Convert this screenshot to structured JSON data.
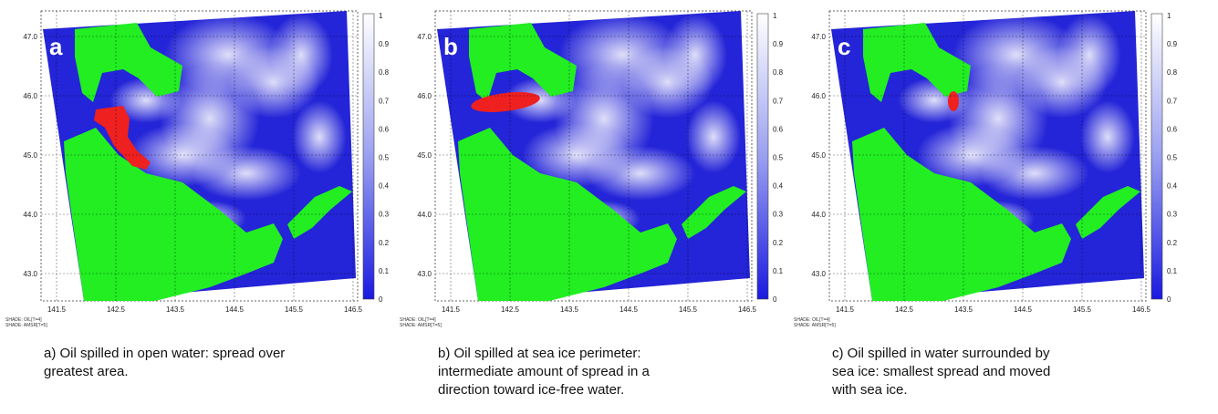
{
  "axes": {
    "lat_labels": [
      "47.0",
      "46.0",
      "45.0",
      "44.0",
      "43.0"
    ],
    "lon_labels": [
      "141.5",
      "142.5",
      "143.5",
      "144.5",
      "145.5",
      "146.5"
    ],
    "colorbar_labels": [
      "1",
      "0.9",
      "0.8",
      "0.7",
      "0.6",
      "0.5",
      "0.4",
      "0.3",
      "0.2",
      "0.1",
      "0"
    ],
    "shade_labels": [
      "SHADE: OIL[T=4]",
      "SHADE: AMSR[T=5]"
    ]
  },
  "panels": [
    {
      "letter": "a",
      "caption": [
        "a) Oil spilled in open water: spread over",
        "greatest area."
      ]
    },
    {
      "letter": "b",
      "caption": [
        "b) Oil spilled at sea ice perimeter:",
        "intermediate amount of spread in a",
        "direction toward ice-free water."
      ]
    },
    {
      "letter": "c",
      "caption": [
        "c) Oil spilled in water surrounded by",
        "sea ice: smallest spread and moved",
        "with sea ice."
      ]
    }
  ]
}
